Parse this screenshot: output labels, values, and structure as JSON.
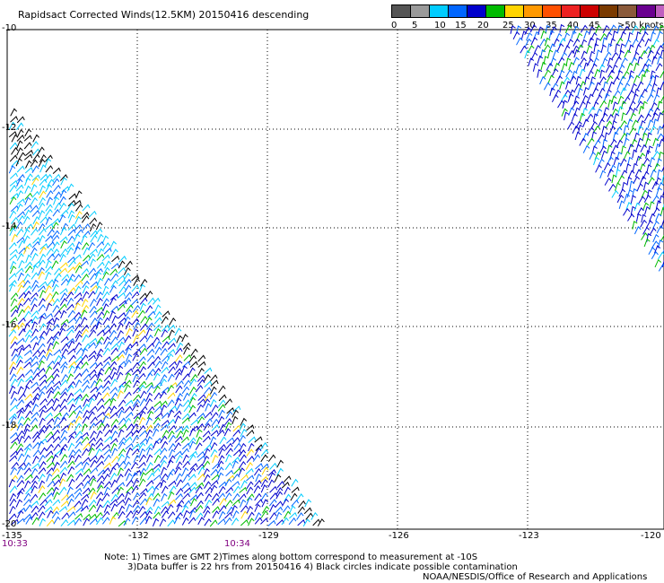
{
  "title": "Rapidsact Corrected Winds(12.5KM) 20150416 descending",
  "legend": {
    "colors": [
      "#555555",
      "#9a9a9a",
      "#00ccff",
      "#0066ff",
      "#0000cc",
      "#00bb00",
      "#ffd400",
      "#ff9900",
      "#ff5000",
      "#ee2222",
      "#cc0000",
      "#7a3a00",
      "#8a5a3a",
      "#6a0090",
      "#c060c0"
    ],
    "labels": [
      "0",
      "5",
      "10",
      "15",
      "20",
      "25",
      "30",
      "35",
      "40",
      "45",
      ">50 knots"
    ]
  },
  "map": {
    "lat_labels": [
      "-10",
      "-12",
      "-14",
      "-16",
      "-18",
      "-20"
    ],
    "lon_labels": [
      "-135",
      "-132",
      "-129",
      "-126",
      "-123",
      "-120"
    ]
  },
  "times": [
    "10:33",
    "10:34"
  ],
  "notes": [
    "Note: 1) Times are GMT 2)Times along bottom correspond to measurement at -10S",
    "3)Data buffer is 22 hrs from 20150416 4) Black circles indicate possible contamination",
    "NOAA/NESDIS/Office of Research and Applications"
  ]
}
